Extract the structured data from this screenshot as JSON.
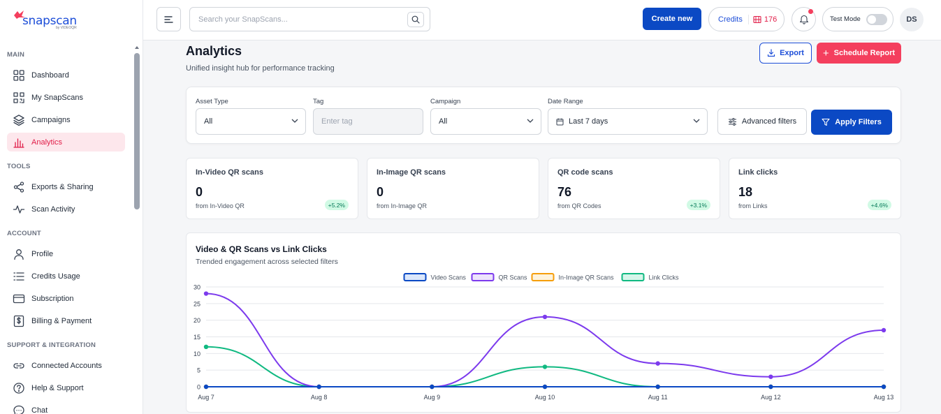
{
  "brand": {
    "name": "snapscan",
    "sub": "by VIDEOQR"
  },
  "sidebar": {
    "sections": [
      {
        "title": "MAIN",
        "items": [
          {
            "label": "Dashboard",
            "icon": "dashboard-icon"
          },
          {
            "label": "My SnapScans",
            "icon": "qr-icon"
          },
          {
            "label": "Campaigns",
            "icon": "layers-icon"
          },
          {
            "label": "Analytics",
            "icon": "bar-chart-icon",
            "active": true
          }
        ]
      },
      {
        "title": "TOOLS",
        "items": [
          {
            "label": "Exports & Sharing",
            "icon": "share-icon"
          },
          {
            "label": "Scan Activity",
            "icon": "activity-icon"
          }
        ]
      },
      {
        "title": "ACCOUNT",
        "items": [
          {
            "label": "Profile",
            "icon": "user-icon"
          },
          {
            "label": "Credits Usage",
            "icon": "list-icon"
          },
          {
            "label": "Subscription",
            "icon": "card-icon"
          },
          {
            "label": "Billing & Payment",
            "icon": "dollar-icon"
          }
        ]
      },
      {
        "title": "SUPPORT & INTEGRATION",
        "items": [
          {
            "label": "Connected Accounts",
            "icon": "link-icon"
          },
          {
            "label": "Help & Support",
            "icon": "help-icon"
          },
          {
            "label": "Chat",
            "icon": "chat-icon"
          }
        ]
      }
    ]
  },
  "header": {
    "search_placeholder": "Search your SnapScans...",
    "create_label": "Create new",
    "credits_label": "Credits",
    "credits_value": "176",
    "test_mode_label": "Test Mode",
    "avatar_initials": "DS"
  },
  "page": {
    "title": "Analytics",
    "subtitle": "Unified insight hub for performance tracking",
    "export_label": "Export",
    "schedule_label": "Schedule Report"
  },
  "filters": {
    "asset_type": {
      "label": "Asset Type",
      "value": "All"
    },
    "tag": {
      "label": "Tag",
      "placeholder": "Enter tag"
    },
    "campaign": {
      "label": "Campaign",
      "value": "All"
    },
    "date_range": {
      "label": "Date Range",
      "value": "Last 7 days"
    },
    "advanced_label": "Advanced filters",
    "apply_label": "Apply Filters"
  },
  "stats": [
    {
      "title": "In-Video QR scans",
      "value": "0",
      "sub": "from In-Video QR",
      "badge": "+5.2%"
    },
    {
      "title": "In-Image QR scans",
      "value": "0",
      "sub": "from In-Image QR",
      "badge": ""
    },
    {
      "title": "QR code scans",
      "value": "76",
      "sub": "from QR Codes",
      "badge": "+3.1%"
    },
    {
      "title": "Link clicks",
      "value": "18",
      "sub": "from Links",
      "badge": "+4.6%"
    }
  ],
  "chart_card": {
    "title": "Video & QR Scans vs Link Clicks",
    "subtitle": "Trended engagement across selected filters"
  },
  "chart_data": {
    "type": "line",
    "x": [
      "Aug 7",
      "Aug 8",
      "Aug 9",
      "Aug 10",
      "Aug 11",
      "Aug 12",
      "Aug 13"
    ],
    "ylim": [
      0,
      30
    ],
    "yticks": [
      0,
      5,
      10,
      15,
      20,
      25,
      30
    ],
    "grid": true,
    "legend": "top-center",
    "series": [
      {
        "name": "Video Scans",
        "color": "#0b49c4",
        "fill": "#dbe7fb",
        "values": [
          0,
          0,
          0,
          0,
          0,
          0,
          0
        ]
      },
      {
        "name": "QR Scans",
        "color": "#7c3aed",
        "fill": "#ede4fc",
        "values": [
          28,
          0,
          0,
          21,
          7,
          3,
          17
        ]
      },
      {
        "name": "In-Image QR Scans",
        "color": "#f59e0b",
        "fill": "#fef3dc",
        "values": [
          0,
          0,
          0,
          0,
          0,
          0,
          0
        ]
      },
      {
        "name": "Link Clicks",
        "color": "#10b981",
        "fill": "#d6f5ea",
        "values": [
          12,
          0,
          0,
          6,
          0,
          0,
          0
        ]
      }
    ]
  }
}
